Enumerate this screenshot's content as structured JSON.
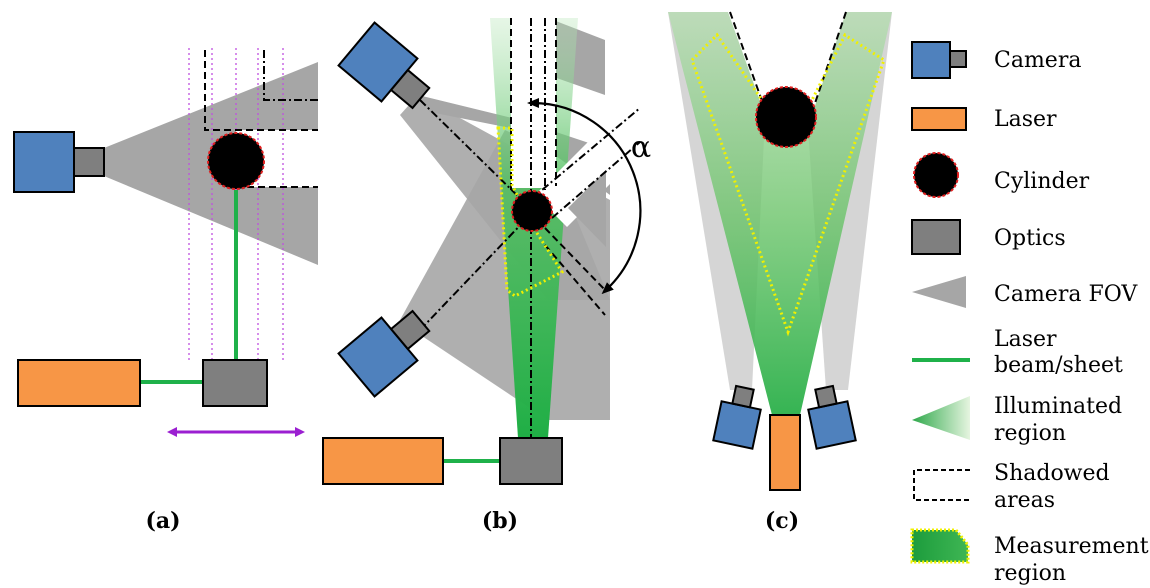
{
  "panels": {
    "a": {
      "label": "(a)"
    },
    "b": {
      "label": "(b)",
      "angle_symbol": "α"
    },
    "c": {
      "label": "(c)"
    }
  },
  "legend": {
    "camera": {
      "label": "Camera"
    },
    "laser": {
      "label": "Laser"
    },
    "cylinder": {
      "label": "Cylinder"
    },
    "optics": {
      "label": "Optics"
    },
    "camera_fov": {
      "label": "Camera FOV"
    },
    "laser_beam": {
      "line1": "Laser",
      "line2": "beam/sheet"
    },
    "illuminated": {
      "line1": "Illuminated",
      "line2": "region"
    },
    "shadowed": {
      "line1": "Shadowed",
      "line2": "areas"
    },
    "measurement": {
      "line1": "Measurement",
      "line2": "region"
    }
  },
  "colors": {
    "camera": "#4f81bd",
    "laser": "#f79646",
    "optics": "#7f7f7f",
    "fov": "#a6a6a6",
    "beam": "#1fb14a",
    "illuminated": "#2ea84a",
    "cylinder": "#000000",
    "cylinder_outline": "#e02020",
    "measurement_outline": "#f0f000",
    "traverse_arrow": "#9b1fd1",
    "guide_lines": "#c050e0"
  }
}
